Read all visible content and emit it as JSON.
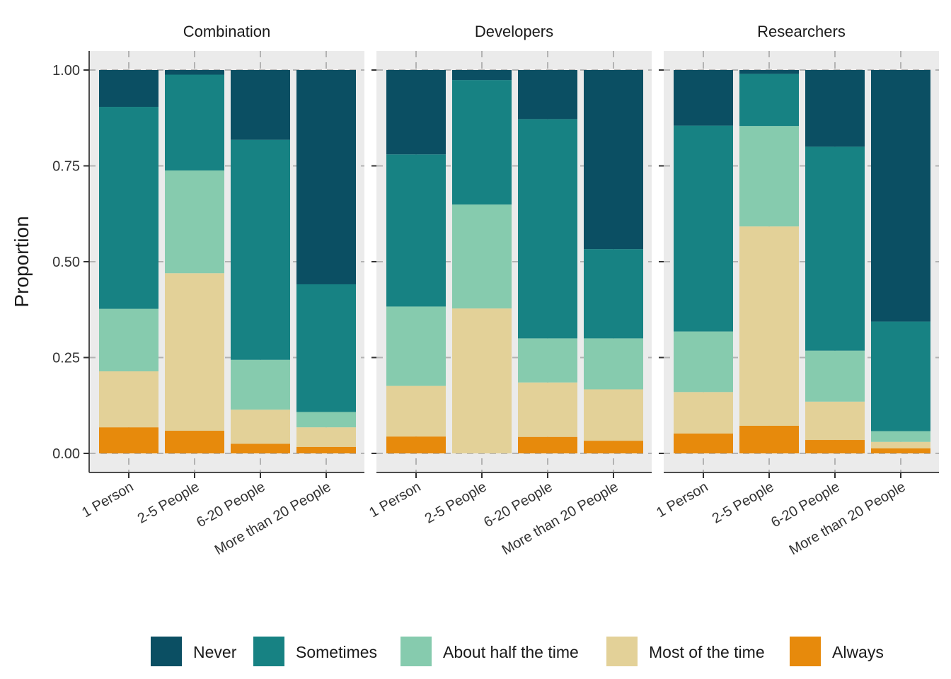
{
  "chart_data": {
    "type": "bar",
    "stacked": "proportion",
    "ylabel": "Proportion",
    "xlabel": "",
    "ylim": [
      0,
      1
    ],
    "yticks": [
      "0.00",
      "0.25",
      "0.50",
      "0.75",
      "1.00"
    ],
    "categories": [
      "1 Person",
      "2-5 People",
      "6-20 People",
      "More than 20 People"
    ],
    "series_order_bottom_to_top": [
      "Always",
      "Most of the time",
      "About half the time",
      "Sometimes",
      "Never"
    ],
    "legend": {
      "position": "bottom",
      "entries": [
        "Never",
        "Sometimes",
        "About half the time",
        "Most of the time",
        "Always"
      ]
    },
    "colors": {
      "Never": "#0b4f63",
      "Sometimes": "#178283",
      "About half the time": "#86cbae",
      "Most of the time": "#e3d198",
      "Always": "#e78a0c"
    },
    "panels": [
      {
        "title": "Combination",
        "series": [
          {
            "name": "Always",
            "values": [
              0.068,
              0.059,
              0.025,
              0.017
            ]
          },
          {
            "name": "Most of the time",
            "values": [
              0.146,
              0.411,
              0.089,
              0.051
            ]
          },
          {
            "name": "About half the time",
            "values": [
              0.163,
              0.268,
              0.13,
              0.04
            ]
          },
          {
            "name": "Sometimes",
            "values": [
              0.527,
              0.25,
              0.574,
              0.333
            ]
          },
          {
            "name": "Never",
            "values": [
              0.096,
              0.012,
              0.182,
              0.559
            ]
          }
        ]
      },
      {
        "title": "Developers",
        "series": [
          {
            "name": "Always",
            "values": [
              0.044,
              0.0,
              0.043,
              0.033
            ]
          },
          {
            "name": "Most of the time",
            "values": [
              0.132,
              0.378,
              0.142,
              0.134
            ]
          },
          {
            "name": "About half the time",
            "values": [
              0.207,
              0.271,
              0.115,
              0.133
            ]
          },
          {
            "name": "Sometimes",
            "values": [
              0.397,
              0.325,
              0.572,
              0.233
            ]
          },
          {
            "name": "Never",
            "values": [
              0.22,
              0.026,
              0.128,
              0.467
            ]
          }
        ]
      },
      {
        "title": "Researchers",
        "series": [
          {
            "name": "Always",
            "values": [
              0.052,
              0.072,
              0.035,
              0.013
            ]
          },
          {
            "name": "Most of the time",
            "values": [
              0.108,
              0.52,
              0.1,
              0.017
            ]
          },
          {
            "name": "About half the time",
            "values": [
              0.158,
              0.262,
              0.133,
              0.028
            ]
          },
          {
            "name": "Sometimes",
            "values": [
              0.537,
              0.136,
              0.532,
              0.286
            ]
          },
          {
            "name": "Never",
            "values": [
              0.145,
              0.01,
              0.2,
              0.656
            ]
          }
        ]
      }
    ]
  }
}
